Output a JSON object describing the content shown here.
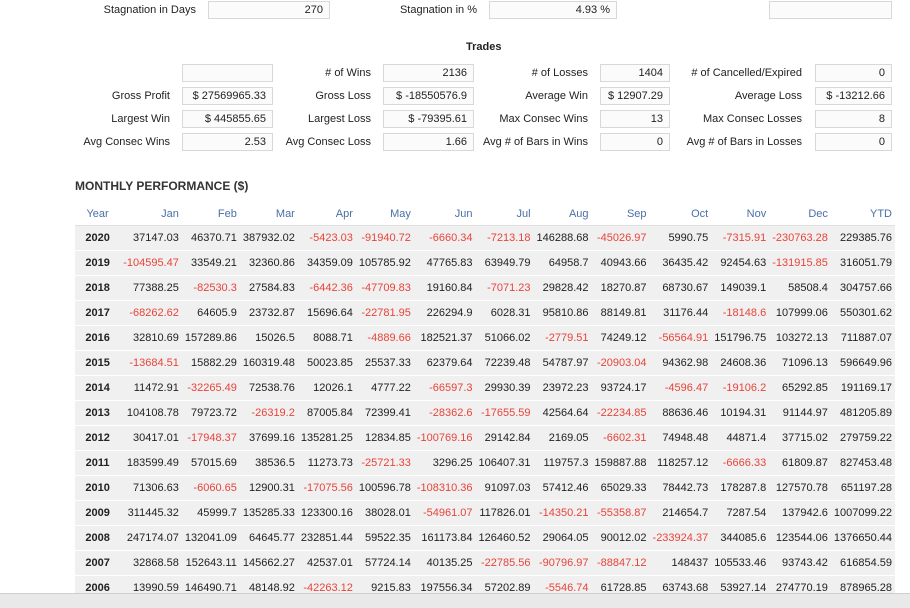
{
  "stagnation": {
    "days_label": "Stagnation in Days",
    "days_value": "270",
    "pct_label": "Stagnation in %",
    "pct_value": "4.93 %",
    "extra_value": ""
  },
  "trades": {
    "title": "Trades",
    "labels": {
      "wins": "# of Wins",
      "losses": "# of Losses",
      "cancelled": "# of Cancelled/Expired",
      "gross_profit": "Gross Profit",
      "gross_loss": "Gross Loss",
      "avg_win": "Average Win",
      "avg_loss": "Average Loss",
      "largest_win": "Largest Win",
      "largest_loss": "Largest Loss",
      "max_consec_wins": "Max Consec Wins",
      "max_consec_losses": "Max Consec Losses",
      "avg_consec_wins": "Avg Consec Wins",
      "avg_consec_loss": "Avg Consec Loss",
      "avg_bars_wins": "Avg # of Bars in Wins",
      "avg_bars_losses": "Avg # of Bars in Losses"
    },
    "values": {
      "blank": "",
      "wins": "2136",
      "losses": "1404",
      "cancelled": "0",
      "gross_profit": "$ 27569965.33",
      "gross_loss": "$ -18550576.9",
      "avg_win": "$ 12907.29",
      "avg_loss": "$ -13212.66",
      "largest_win": "$ 445855.65",
      "largest_loss": "$ -79395.61",
      "max_consec_wins": "13",
      "max_consec_losses": "8",
      "avg_consec_wins": "2.53",
      "avg_consec_loss": "1.66",
      "avg_bars_wins": "0",
      "avg_bars_losses": "0"
    }
  },
  "monthly": {
    "title": "MONTHLY PERFORMANCE ($)",
    "headers": [
      "Year",
      "Jan",
      "Feb",
      "Mar",
      "Apr",
      "May",
      "Jun",
      "Jul",
      "Aug",
      "Sep",
      "Oct",
      "Nov",
      "Dec",
      "YTD"
    ],
    "rows": [
      [
        "2020",
        "37147.03",
        "46370.71",
        "387932.02",
        "-5423.03",
        "-91940.72",
        "-6660.34",
        "-7213.18",
        "146288.68",
        "-45026.97",
        "5990.75",
        "-7315.91",
        "-230763.28",
        "229385.76"
      ],
      [
        "2019",
        "-104595.47",
        "33549.21",
        "32360.86",
        "34359.09",
        "105785.92",
        "47765.83",
        "63949.79",
        "64958.7",
        "40943.66",
        "36435.42",
        "92454.63",
        "-131915.85",
        "316051.79"
      ],
      [
        "2018",
        "77388.25",
        "-82530.3",
        "27584.83",
        "-6442.36",
        "-47709.83",
        "19160.84",
        "-7071.23",
        "29828.42",
        "18270.87",
        "68730.67",
        "149039.1",
        "58508.4",
        "304757.66"
      ],
      [
        "2017",
        "-68262.62",
        "64605.9",
        "23732.87",
        "15696.64",
        "-22781.95",
        "226294.9",
        "6028.31",
        "95810.86",
        "88149.81",
        "31176.44",
        "-18148.6",
        "107999.06",
        "550301.62"
      ],
      [
        "2016",
        "32810.69",
        "157289.86",
        "15026.5",
        "8088.71",
        "-4889.66",
        "182521.37",
        "51066.02",
        "-2779.51",
        "74249.12",
        "-56564.91",
        "151796.75",
        "103272.13",
        "711887.07"
      ],
      [
        "2015",
        "-13684.51",
        "15882.29",
        "160319.48",
        "50023.85",
        "25537.33",
        "62379.64",
        "72239.48",
        "54787.97",
        "-20903.04",
        "94362.98",
        "24608.36",
        "71096.13",
        "596649.96"
      ],
      [
        "2014",
        "11472.91",
        "-32265.49",
        "72538.76",
        "12026.1",
        "4777.22",
        "-66597.3",
        "29930.39",
        "23972.23",
        "93724.17",
        "-4596.47",
        "-19106.2",
        "65292.85",
        "191169.17"
      ],
      [
        "2013",
        "104108.78",
        "79723.72",
        "-26319.2",
        "87005.84",
        "72399.41",
        "-28362.6",
        "-17655.59",
        "42564.64",
        "-22234.85",
        "88636.46",
        "10194.31",
        "91144.97",
        "481205.89"
      ],
      [
        "2012",
        "30417.01",
        "-17948.37",
        "37699.16",
        "135281.25",
        "12834.85",
        "-100769.16",
        "29142.84",
        "2169.05",
        "-6602.31",
        "74948.48",
        "44871.4",
        "37715.02",
        "279759.22"
      ],
      [
        "2011",
        "183599.49",
        "57015.69",
        "38536.5",
        "11273.73",
        "-25721.33",
        "3296.25",
        "106407.31",
        "119757.3",
        "159887.88",
        "118257.12",
        "-6666.33",
        "61809.87",
        "827453.48"
      ],
      [
        "2010",
        "71306.63",
        "-6060.65",
        "12900.31",
        "-17075.56",
        "100596.78",
        "-108310.36",
        "91097.03",
        "57412.46",
        "65029.33",
        "78442.73",
        "178287.8",
        "127570.78",
        "651197.28"
      ],
      [
        "2009",
        "311445.32",
        "45999.7",
        "135285.33",
        "123300.16",
        "38028.01",
        "-54961.07",
        "117826.01",
        "-14350.21",
        "-55358.87",
        "214654.7",
        "7287.54",
        "137942.6",
        "1007099.22"
      ],
      [
        "2008",
        "247174.07",
        "132041.09",
        "64645.77",
        "232851.44",
        "59522.35",
        "161173.84",
        "126460.52",
        "29064.05",
        "90012.02",
        "-233924.37",
        "344085.6",
        "123544.06",
        "1376650.44"
      ],
      [
        "2007",
        "32868.58",
        "152643.11",
        "145662.27",
        "42537.01",
        "57724.14",
        "40135.25",
        "-22785.56",
        "-90796.97",
        "-88847.12",
        "148437",
        "105533.46",
        "93743.42",
        "616854.59"
      ],
      [
        "2006",
        "13990.59",
        "146490.71",
        "48148.92",
        "-42263.12",
        "9215.83",
        "197556.34",
        "57202.89",
        "-5546.74",
        "61728.85",
        "63743.68",
        "53927.14",
        "274770.19",
        "878965.28"
      ]
    ]
  }
}
